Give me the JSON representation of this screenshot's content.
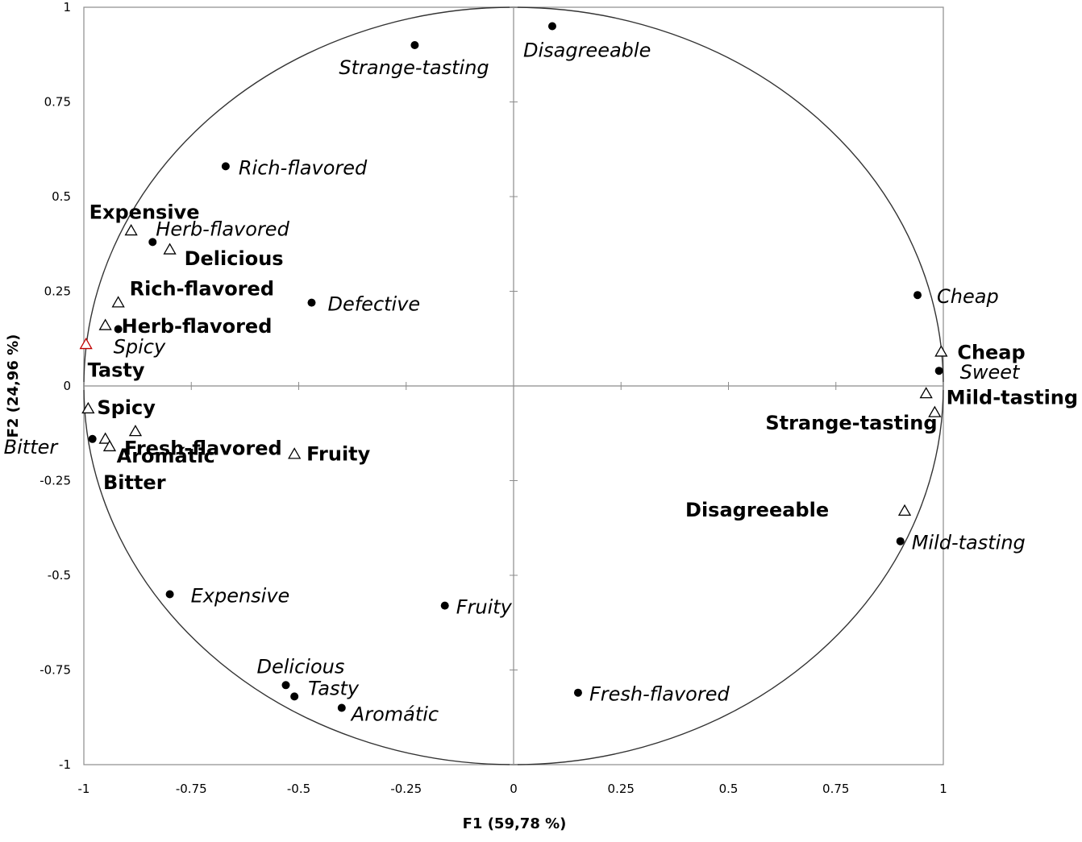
{
  "chart_data": {
    "type": "scatter",
    "xlabel": "F1 (59,78 %)",
    "ylabel": "F2 (24,96 %)",
    "xlim": [
      -1,
      1
    ],
    "ylim": [
      -1,
      1
    ],
    "x_ticks": [
      "-1",
      "-0.75",
      "-0.5",
      "-0.25",
      "0",
      "0.25",
      "0.5",
      "0.75",
      "1"
    ],
    "y_ticks": [
      "1",
      "0.75",
      "0.5",
      "0.25",
      "0",
      "-0.25",
      "-0.5",
      "-0.75",
      "-1"
    ],
    "grid": false,
    "correlation_circle": true,
    "colors": {
      "axis": "#8c8c8c",
      "circle": "#333333",
      "marker": "#000000",
      "highlight": "#c00000"
    },
    "series": [
      {
        "marker": "filled-circle",
        "label_style": "italic",
        "points": [
          {
            "label": "Disagreeable",
            "x": 0.09,
            "y": 0.95
          },
          {
            "label": "Strange-tasting",
            "x": -0.23,
            "y": 0.9
          },
          {
            "label": "Rich-flavored",
            "x": -0.67,
            "y": 0.58
          },
          {
            "label": "Herb-flavored",
            "x": -0.84,
            "y": 0.38
          },
          {
            "label": "Defective",
            "x": -0.47,
            "y": 0.22
          },
          {
            "label": "Cheap",
            "x": 0.94,
            "y": 0.24
          },
          {
            "label": "Sweet",
            "x": 0.99,
            "y": 0.04
          },
          {
            "label": "Spicy",
            "x": -0.92,
            "y": 0.15
          },
          {
            "label": "Bitter",
            "x": -0.98,
            "y": -0.14
          },
          {
            "label": "Mild-tasting",
            "x": 0.9,
            "y": -0.41
          },
          {
            "label": "Expensive",
            "x": -0.8,
            "y": -0.55
          },
          {
            "label": "Fruity",
            "x": -0.16,
            "y": -0.58
          },
          {
            "label": "Delicious",
            "x": -0.53,
            "y": -0.79
          },
          {
            "label": "Tasty",
            "x": -0.51,
            "y": -0.82
          },
          {
            "label": "Aromátic",
            "x": -0.4,
            "y": -0.85
          },
          {
            "label": "Fresh-flavored",
            "x": 0.15,
            "y": -0.81
          }
        ]
      },
      {
        "marker": "open-triangle",
        "label_style": "bold",
        "points": [
          {
            "label": "Expensive",
            "x": -0.89,
            "y": 0.41
          },
          {
            "label": "Delicious",
            "x": -0.8,
            "y": 0.36
          },
          {
            "label": "Rich-flavored",
            "x": -0.92,
            "y": 0.22
          },
          {
            "label": "Herb-flavored",
            "x": -0.95,
            "y": 0.16
          },
          {
            "label": "Tasty",
            "x": -0.995,
            "y": 0.11
          },
          {
            "label": "Spicy",
            "x": -0.99,
            "y": -0.06
          },
          {
            "label": "Fresh-flavored",
            "x": -0.88,
            "y": -0.12
          },
          {
            "label": "Aromátic",
            "x": -0.95,
            "y": -0.14
          },
          {
            "label": "Bitter",
            "x": -0.94,
            "y": -0.16
          },
          {
            "label": "Fruity",
            "x": -0.51,
            "y": -0.18
          },
          {
            "label": "Cheap",
            "x": 0.995,
            "y": 0.09
          },
          {
            "label": "Mild-tasting",
            "x": 0.96,
            "y": -0.02
          },
          {
            "label": "Strange-tasting",
            "x": 0.98,
            "y": -0.07
          },
          {
            "label": "Disagreeable",
            "x": 0.91,
            "y": -0.33
          }
        ]
      }
    ]
  }
}
